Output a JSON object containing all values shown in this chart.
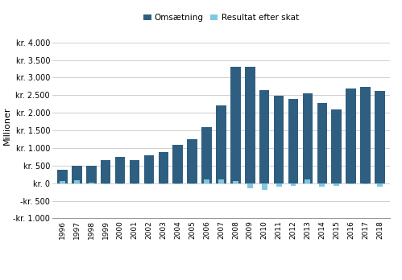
{
  "years": [
    1996,
    1997,
    1998,
    1999,
    2000,
    2001,
    2002,
    2003,
    2004,
    2005,
    2006,
    2007,
    2008,
    2009,
    2010,
    2011,
    2012,
    2013,
    2014,
    2015,
    2016,
    2017,
    2018
  ],
  "omsaetning": [
    380,
    500,
    490,
    660,
    740,
    650,
    800,
    880,
    1100,
    1260,
    1600,
    2220,
    3310,
    3310,
    2650,
    2480,
    2390,
    2550,
    2290,
    2100,
    2700,
    2730,
    2620
  ],
  "resultat": [
    60,
    90,
    10,
    -30,
    -20,
    -30,
    -20,
    -20,
    -20,
    -20,
    100,
    100,
    70,
    -150,
    -200,
    -100,
    -80,
    100,
    -100,
    -80,
    -30,
    -40,
    -100
  ],
  "bar_color_omsaetning": "#2e5f80",
  "bar_color_resultat": "#7ec8e3",
  "ylabel": "Millioner",
  "ylim_min": -1000,
  "ylim_max": 4250,
  "yticks": [
    -1000,
    -500,
    0,
    500,
    1000,
    1500,
    2000,
    2500,
    3000,
    3500,
    4000
  ],
  "ytick_labels": [
    "-kr. 1.000",
    "-kr. 500",
    "kr. 0",
    "kr. 500",
    "kr. 1.000",
    "kr. 1.500",
    "kr. 2.000",
    "kr. 2.500",
    "kr. 3.000",
    "kr. 3.500",
    "kr. 4.000"
  ],
  "legend_omsaetning": "Omsætning",
  "legend_resultat": "Resultat efter skat",
  "bar_width": 0.7,
  "background_color": "#ffffff",
  "grid_color": "#d0d0d0"
}
